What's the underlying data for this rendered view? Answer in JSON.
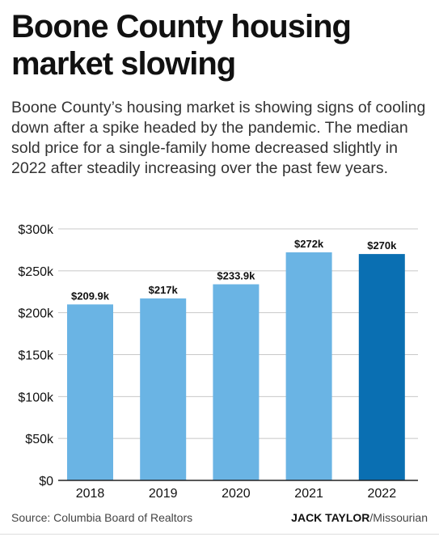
{
  "header": {
    "title": "Boone County housing market slowing",
    "subtitle": "Boone County’s housing market is showing signs of cooling down after a spike headed by the pandemic. The median sold price for a single-family home decreased slightly in 2022 after steadily increasing over the past few years."
  },
  "chart_data": {
    "type": "bar",
    "categories": [
      "2018",
      "2019",
      "2020",
      "2021",
      "2022"
    ],
    "values": [
      209.9,
      217,
      233.9,
      272,
      270
    ],
    "data_labels": [
      "$209.9k",
      "$217k",
      "$233.9k",
      "$272k",
      "$270k"
    ],
    "ylim": [
      0,
      300
    ],
    "yticks": [
      0,
      50,
      100,
      150,
      200,
      250,
      300
    ],
    "ytick_labels": [
      "$0",
      "$50k",
      "$100k",
      "$150k",
      "$200k",
      "$250k",
      "$300k"
    ],
    "grid": true,
    "colors": {
      "bar": "#6ab4e4",
      "highlight": "#0a6fb2",
      "grid": "#c8c8c8",
      "axis": "#222222"
    },
    "highlight_index": 4
  },
  "footer": {
    "source": "Source: Columbia Board of Realtors",
    "credit_name": "JACK TAYLOR",
    "credit_org": "/Missourian"
  }
}
